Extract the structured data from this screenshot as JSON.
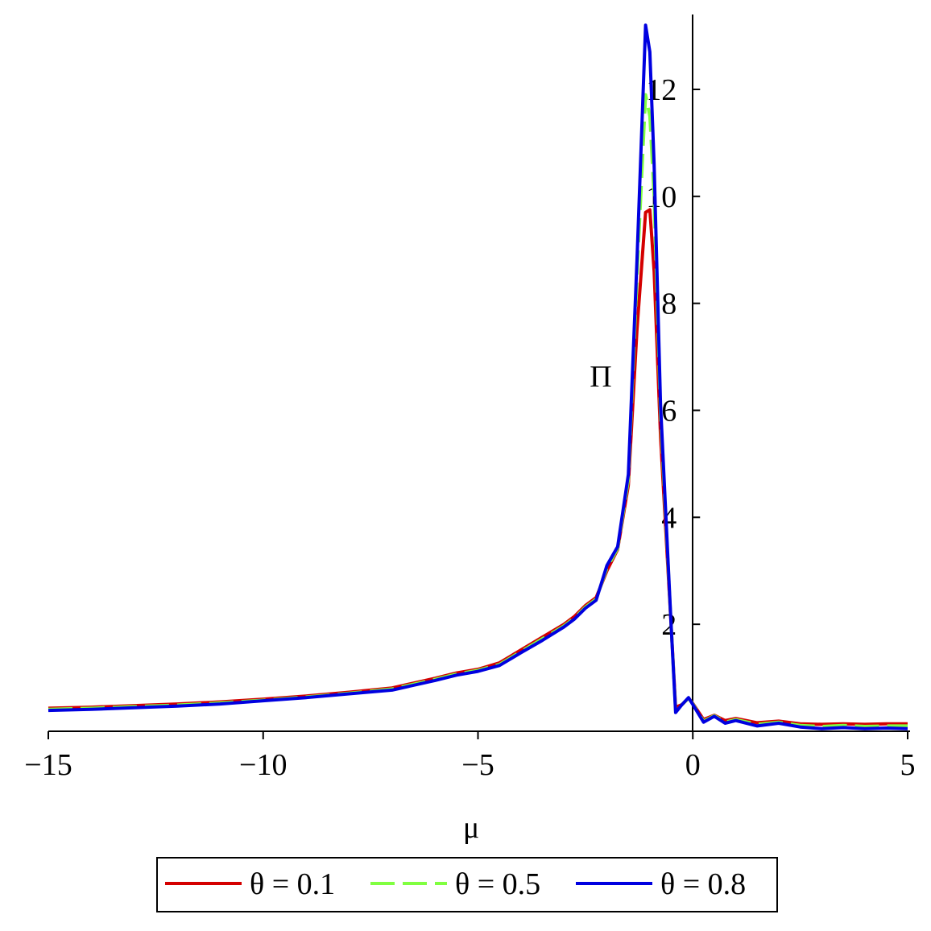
{
  "chart_data": {
    "type": "line",
    "xlabel": "μ",
    "ylabel": "Π",
    "x": [
      -15,
      -14,
      -13,
      -12,
      -11,
      -10,
      -9,
      -8,
      -7,
      -6,
      -5.5,
      -5,
      -4.5,
      -4,
      -3.5,
      -3,
      -2.75,
      -2.5,
      -2.25,
      -2,
      -1.75,
      -1.5,
      -1.3,
      -1.1,
      -1,
      -0.9,
      -0.75,
      -0.5,
      -0.4,
      -0.25,
      -0.1,
      0,
      0.25,
      0.5,
      0.75,
      1,
      1.5,
      2,
      2.5,
      3,
      3.5,
      4,
      4.5,
      5
    ],
    "series": [
      {
        "name": "θ = 0.1",
        "color": "#d40000",
        "dash": false,
        "values": [
          0.43,
          0.45,
          0.48,
          0.51,
          0.55,
          0.6,
          0.66,
          0.73,
          0.81,
          0.99,
          1.09,
          1.16,
          1.28,
          1.52,
          1.76,
          2.0,
          2.15,
          2.35,
          2.5,
          3.0,
          3.4,
          4.6,
          7.5,
          9.7,
          9.75,
          8.6,
          5.5,
          1.9,
          0.45,
          0.5,
          0.62,
          0.52,
          0.22,
          0.3,
          0.2,
          0.24,
          0.16,
          0.19,
          0.14,
          0.13,
          0.14,
          0.13,
          0.14,
          0.14
        ]
      },
      {
        "name": "θ = 0.5",
        "color": "#80ff40",
        "dash": true,
        "values": [
          0.41,
          0.43,
          0.46,
          0.49,
          0.53,
          0.58,
          0.64,
          0.71,
          0.79,
          0.97,
          1.07,
          1.14,
          1.25,
          1.49,
          1.73,
          1.97,
          2.12,
          2.32,
          2.47,
          3.05,
          3.42,
          4.7,
          8.5,
          11.9,
          11.5,
          10.0,
          5.9,
          1.9,
          0.38,
          0.5,
          0.62,
          0.51,
          0.19,
          0.29,
          0.17,
          0.22,
          0.13,
          0.17,
          0.11,
          0.09,
          0.11,
          0.09,
          0.1,
          0.1
        ]
      },
      {
        "name": "θ = 0.8",
        "color": "#0000e0",
        "dash": false,
        "values": [
          0.39,
          0.41,
          0.44,
          0.47,
          0.51,
          0.57,
          0.63,
          0.7,
          0.77,
          0.95,
          1.05,
          1.12,
          1.23,
          1.47,
          1.7,
          1.95,
          2.1,
          2.3,
          2.45,
          3.1,
          3.45,
          4.8,
          8.8,
          13.2,
          12.7,
          10.6,
          6.1,
          1.9,
          0.35,
          0.5,
          0.63,
          0.5,
          0.17,
          0.28,
          0.15,
          0.2,
          0.1,
          0.15,
          0.08,
          0.05,
          0.07,
          0.05,
          0.06,
          0.05
        ]
      }
    ],
    "xlim": [
      -15,
      5
    ],
    "ylim": [
      0,
      13.4
    ],
    "xticks": [
      {
        "value": -15,
        "label": "−15"
      },
      {
        "value": -10,
        "label": "−10"
      },
      {
        "value": -5,
        "label": "−5"
      },
      0,
      5
    ],
    "yticks": [
      2,
      4,
      6,
      8,
      10,
      12
    ],
    "grid": false,
    "legend": "bottom"
  }
}
